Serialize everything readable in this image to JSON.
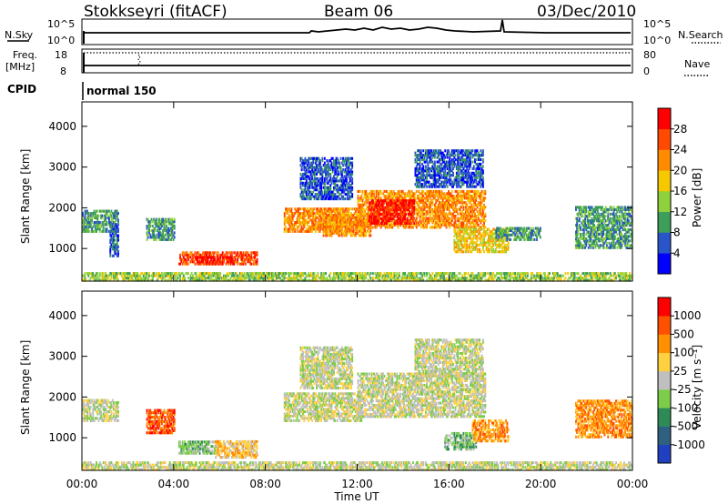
{
  "header": {
    "station": "Stokkseyri (fitACF)",
    "beam": "Beam 06",
    "date": "03/Dec/2010"
  },
  "panels": {
    "nsky": {
      "label": "N.Sky",
      "left_ticks": [
        "10^5",
        "10^0"
      ],
      "right_ticks": [
        "10^5",
        "10^0"
      ],
      "right_label": "N.Search"
    },
    "freq": {
      "label_line1": "Freq.",
      "label_line2": "[MHz]",
      "left_ticks": [
        "18",
        "8"
      ],
      "right_ticks": [
        "80",
        "0"
      ],
      "right_label": "Nave"
    },
    "cpid": {
      "label": "CPID",
      "value": "normal 150"
    }
  },
  "colors": {
    "power": [
      "#0000ff",
      "#2a55c8",
      "#3c9e5a",
      "#8fd13c",
      "#f5c800",
      "#ff8c00",
      "#ff4a00",
      "#ff0000"
    ],
    "velocity": [
      "#2040c0",
      "#306080",
      "#2e8b57",
      "#7ccd4a",
      "#bfbfbf",
      "#ffd040",
      "#ff9000",
      "#ff5000",
      "#ff0000"
    ]
  },
  "chart_data": [
    {
      "type": "heatmap",
      "name": "power",
      "xlabel": "",
      "ylabel": "Slant Range [km]",
      "xlim": [
        0,
        24
      ],
      "ylim": [
        200,
        4600
      ],
      "x_ticks": [
        "00:00",
        "04:00",
        "08:00",
        "12:00",
        "16:00",
        "20:00",
        "00:00"
      ],
      "y_ticks": [
        "1000",
        "2000",
        "3000",
        "4000"
      ],
      "colorbar_label": "Power [dB]",
      "colorbar_ticks": [
        "4",
        "8",
        "12",
        "16",
        "20",
        "24",
        "28"
      ],
      "regions": [
        {
          "t0": 0.0,
          "t1": 1.6,
          "r0": 1400,
          "r1": 1900,
          "level": 2
        },
        {
          "t0": 1.2,
          "t1": 1.6,
          "r0": 800,
          "r1": 1600,
          "level": 1
        },
        {
          "t0": 2.8,
          "t1": 4.0,
          "r0": 1200,
          "r1": 1700,
          "level": 2
        },
        {
          "t0": 4.2,
          "t1": 7.6,
          "r0": 600,
          "r1": 900,
          "level": 6
        },
        {
          "t0": 5.0,
          "t1": 6.5,
          "r0": 650,
          "r1": 800,
          "level": 7
        },
        {
          "t0": 8.8,
          "t1": 12.2,
          "r0": 1400,
          "r1": 2000,
          "level": 5
        },
        {
          "t0": 9.5,
          "t1": 11.8,
          "r0": 2200,
          "r1": 3200,
          "level": 1
        },
        {
          "t0": 10.5,
          "t1": 12.6,
          "r0": 1300,
          "r1": 1800,
          "level": 5
        },
        {
          "t0": 12.0,
          "t1": 17.6,
          "r0": 1500,
          "r1": 2400,
          "level": 5
        },
        {
          "t0": 12.5,
          "t1": 14.5,
          "r0": 1600,
          "r1": 2200,
          "level": 7
        },
        {
          "t0": 14.5,
          "t1": 17.5,
          "r0": 2500,
          "r1": 3400,
          "level": 1
        },
        {
          "t0": 16.2,
          "t1": 18.6,
          "r0": 900,
          "r1": 1500,
          "level": 4
        },
        {
          "t0": 18.0,
          "t1": 20.0,
          "r0": 1200,
          "r1": 1500,
          "level": 2
        },
        {
          "t0": 21.5,
          "t1": 24.0,
          "r0": 1000,
          "r1": 2000,
          "level": 2
        },
        {
          "t0": 0.0,
          "t1": 24.0,
          "r0": 200,
          "r1": 400,
          "level": 3
        }
      ]
    },
    {
      "type": "heatmap",
      "name": "velocity",
      "xlabel": "Time UT",
      "ylabel": "Slant Range [km]",
      "xlim": [
        0,
        24
      ],
      "ylim": [
        200,
        4600
      ],
      "x_ticks": [
        "00:00",
        "04:00",
        "08:00",
        "12:00",
        "16:00",
        "20:00",
        "00:00"
      ],
      "y_ticks": [
        "1000",
        "2000",
        "3000",
        "4000"
      ],
      "colorbar_label": "Velocity [m s⁻¹]",
      "colorbar_ticks": [
        "1000",
        "500",
        "100",
        "25",
        "-25",
        "-100",
        "-500",
        "-1000"
      ],
      "regions": [
        {
          "t0": 0.0,
          "t1": 1.6,
          "r0": 1400,
          "r1": 1900,
          "level": 4
        },
        {
          "t0": 2.8,
          "t1": 4.0,
          "r0": 1100,
          "r1": 1700,
          "level": 7
        },
        {
          "t0": 4.2,
          "t1": 5.8,
          "r0": 600,
          "r1": 900,
          "level": 3
        },
        {
          "t0": 5.8,
          "t1": 7.6,
          "r0": 500,
          "r1": 900,
          "level": 5
        },
        {
          "t0": 8.8,
          "t1": 12.2,
          "r0": 1400,
          "r1": 2100,
          "level": 4
        },
        {
          "t0": 9.5,
          "t1": 11.8,
          "r0": 2200,
          "r1": 3200,
          "level": 4
        },
        {
          "t0": 12.0,
          "t1": 17.6,
          "r0": 1500,
          "r1": 2600,
          "level": 4
        },
        {
          "t0": 14.5,
          "t1": 17.5,
          "r0": 2500,
          "r1": 3400,
          "level": 4
        },
        {
          "t0": 15.8,
          "t1": 17.2,
          "r0": 700,
          "r1": 1100,
          "level": 3
        },
        {
          "t0": 17.0,
          "t1": 18.6,
          "r0": 900,
          "r1": 1400,
          "level": 6
        },
        {
          "t0": 21.5,
          "t1": 24.0,
          "r0": 1000,
          "r1": 1900,
          "level": 6
        },
        {
          "t0": 0.0,
          "t1": 24.0,
          "r0": 200,
          "r1": 400,
          "level": 4
        }
      ]
    }
  ]
}
